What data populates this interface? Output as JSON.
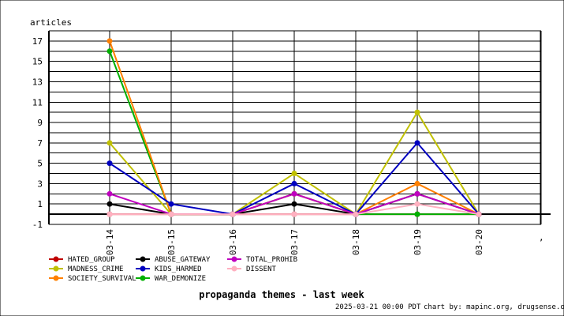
{
  "chart_data": {
    "type": "line",
    "title": "propaganda themes - last week",
    "ylabel": "articles",
    "xlabel": "",
    "x": [
      "03-14",
      "03-15",
      "03-16",
      "03-17",
      "03-18",
      "03-19",
      "03-20"
    ],
    "x_extra_tick": ",",
    "ylim": [
      -1,
      18
    ],
    "yticks": [
      -1,
      1,
      3,
      5,
      7,
      9,
      11,
      13,
      15,
      17
    ],
    "grid": true,
    "legend_position": "bottom-left",
    "series": [
      {
        "name": "HATED_GROUP",
        "color": "#c00000",
        "values": [
          0,
          0,
          0,
          0,
          0,
          0,
          0
        ]
      },
      {
        "name": "MADNESS_CRIME",
        "color": "#c0c000",
        "values": [
          7,
          0,
          0,
          4,
          0,
          10,
          0
        ]
      },
      {
        "name": "SOCIETY_SURVIVAL",
        "color": "#ff8000",
        "values": [
          17,
          0,
          0,
          2,
          0,
          3,
          0
        ]
      },
      {
        "name": "ABUSE_GATEWAY",
        "color": "#000000",
        "values": [
          1,
          0,
          0,
          1,
          0,
          2,
          0
        ]
      },
      {
        "name": "KIDS_HARMED",
        "color": "#0000c0",
        "values": [
          5,
          1,
          0,
          3,
          0,
          7,
          0
        ]
      },
      {
        "name": "WAR_DEMONIZE",
        "color": "#00b000",
        "values": [
          16,
          0,
          0,
          2,
          0,
          0,
          0
        ]
      },
      {
        "name": "TOTAL_PROHIB",
        "color": "#c000c0",
        "values": [
          2,
          0,
          0,
          2,
          0,
          2,
          0
        ]
      },
      {
        "name": "DISSENT",
        "color": "#ffb0c0",
        "values": [
          0,
          0,
          0,
          0,
          0,
          1,
          0
        ]
      }
    ],
    "draw_order": [
      "HATED_GROUP",
      "ABUSE_GATEWAY",
      "MADNESS_CRIME",
      "WAR_DEMONIZE",
      "SOCIETY_SURVIVAL",
      "KIDS_HARMED",
      "TOTAL_PROHIB",
      "DISSENT"
    ]
  },
  "footer": {
    "timestamp": "2025-03-21 00:00 PDT",
    "credit": "chart by: mapinc.org, drugsense.org"
  }
}
